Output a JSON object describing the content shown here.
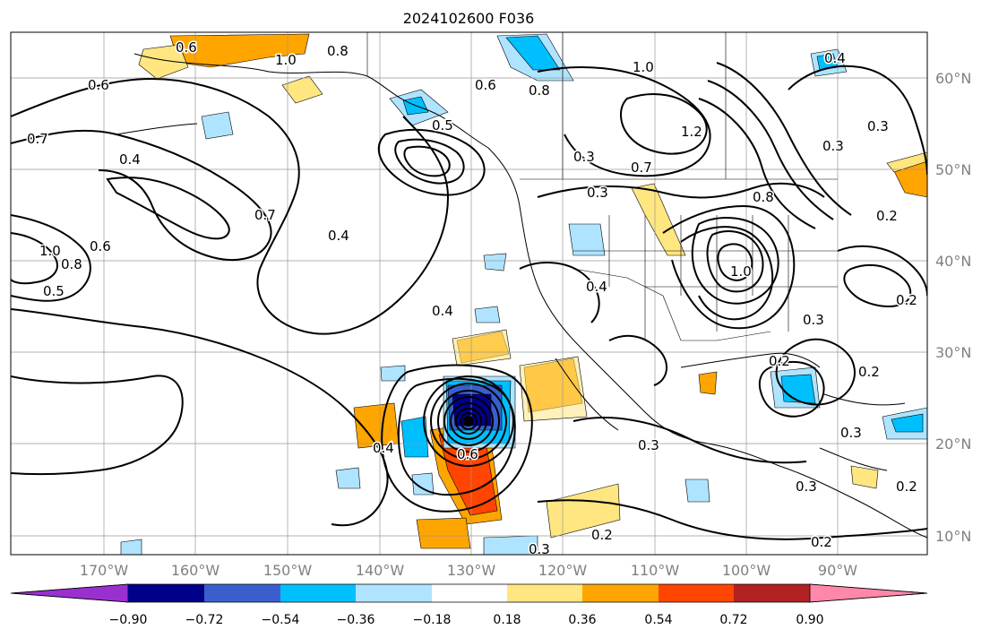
{
  "title": "2024102600 F036",
  "lon_labels": [
    "170°W",
    "160°W",
    "150°W",
    "140°W",
    "130°W",
    "120°W",
    "110°W",
    "100°W",
    "90°W"
  ],
  "lat_labels": [
    "60°N",
    "50°N",
    "40°N",
    "30°N",
    "20°N",
    "10°N"
  ],
  "colorbar": {
    "ticks": [
      "−0.90",
      "−0.72",
      "−0.54",
      "−0.36",
      "−0.18",
      "0.18",
      "0.36",
      "0.54",
      "0.72",
      "0.90"
    ],
    "colors": [
      "#9b30d0",
      "#000089",
      "#3a5fcd",
      "#00bfff",
      "#aee4ff",
      "#ffffff",
      "#ffe680",
      "#ffa500",
      "#ff4500",
      "#b22222",
      "#ff88aa"
    ]
  },
  "contour_labels": [
    {
      "text": "0.6"
    },
    {
      "text": "1.0"
    },
    {
      "text": "0.8"
    },
    {
      "text": "0.6"
    },
    {
      "text": "0.8"
    },
    {
      "text": "1.0"
    },
    {
      "text": "0.4"
    },
    {
      "text": "0.6"
    },
    {
      "text": "0.7"
    },
    {
      "text": "0.4"
    },
    {
      "text": "0.7"
    },
    {
      "text": "0.4"
    },
    {
      "text": "1.0"
    },
    {
      "text": "0.8"
    },
    {
      "text": "0.6"
    },
    {
      "text": "0.5"
    },
    {
      "text": "0.4"
    },
    {
      "text": "0.5"
    },
    {
      "text": "0.7"
    },
    {
      "text": "0.3"
    },
    {
      "text": "0.3"
    },
    {
      "text": "1.2"
    },
    {
      "text": "0.3"
    },
    {
      "text": "0.3"
    },
    {
      "text": "0.8"
    },
    {
      "text": "1.0"
    },
    {
      "text": "0.4"
    },
    {
      "text": "0.3"
    },
    {
      "text": "0.2"
    },
    {
      "text": "0.2"
    },
    {
      "text": "0.2"
    },
    {
      "text": "0.4"
    },
    {
      "text": "0.6"
    },
    {
      "text": "0.3"
    },
    {
      "text": "0.3"
    },
    {
      "text": "0.2"
    },
    {
      "text": "0.3"
    },
    {
      "text": "0.2"
    },
    {
      "text": "0.2"
    },
    {
      "text": "0.3"
    },
    {
      "text": "0.2"
    }
  ]
}
